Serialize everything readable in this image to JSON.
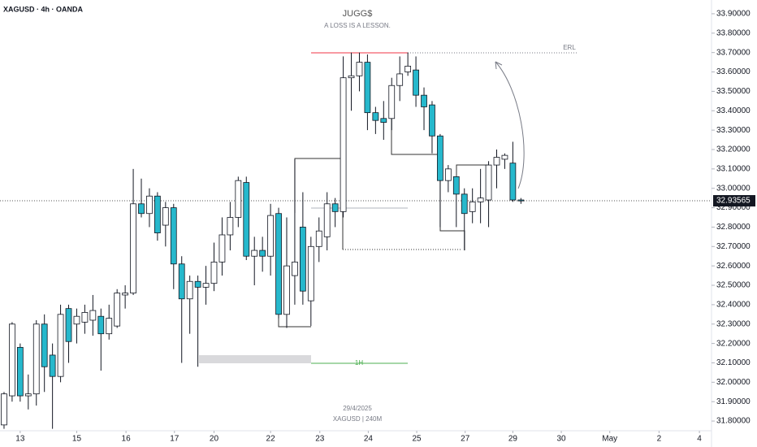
{
  "chart_data": {
    "type": "candlestick",
    "title": "JUGG$",
    "subtitle": "A LOSS IS A LESSON.",
    "symbol": "XAGUSD · 4h · OANDA",
    "watermark_date": "29/4/2025",
    "watermark_symbol": "XAGUSD | 240M",
    "annotations": {
      "erl": "ERL",
      "one_hour": "1H"
    },
    "up_color": "#ffffff",
    "down_color": "#26b8cc",
    "x": [
      0,
      1,
      2,
      3,
      4,
      5,
      6,
      7,
      8,
      9,
      10,
      11,
      12,
      13,
      14,
      15,
      16,
      17,
      18,
      19,
      20,
      21,
      22,
      23,
      24,
      25,
      26,
      27,
      28,
      29,
      30,
      31,
      32,
      33,
      34,
      35,
      36,
      37,
      38,
      39,
      40,
      41,
      42,
      43,
      44,
      45,
      46,
      47,
      48,
      49,
      50,
      51,
      52,
      53,
      54,
      55,
      56,
      57,
      58,
      59,
      60,
      61,
      62,
      63,
      64
    ],
    "open": [
      31.78,
      31.93,
      32.18,
      31.93,
      31.94,
      32.3,
      32.14,
      32.03,
      32.38,
      32.3,
      32.31,
      32.32,
      32.34,
      32.25,
      32.29,
      32.45,
      32.46,
      32.92,
      32.87,
      32.96,
      32.81,
      32.9,
      32.61,
      32.43,
      32.52,
      32.49,
      32.51,
      32.62,
      32.76,
      32.85,
      33.03,
      32.65,
      32.68,
      32.65,
      32.87,
      32.35,
      32.55,
      32.8,
      32.42,
      32.7,
      32.75,
      32.92,
      32.88,
      33.57,
      33.58,
      33.65,
      33.39,
      33.36,
      33.36,
      33.53,
      33.6,
      33.61,
      33.48,
      33.43,
      33.27,
      33.04,
      33.06,
      32.97,
      32.88,
      32.93,
      32.94,
      33.12,
      33.15,
      33.13,
      32.94
    ],
    "high": [
      31.95,
      32.31,
      32.2,
      32.04,
      32.32,
      32.35,
      32.2,
      32.4,
      32.4,
      32.38,
      32.4,
      32.45,
      32.38,
      32.4,
      32.48,
      32.5,
      33.1,
      33.05,
      33.0,
      32.98,
      32.93,
      32.92,
      32.65,
      32.55,
      32.55,
      32.6,
      32.72,
      32.85,
      32.93,
      33.06,
      33.06,
      32.75,
      32.75,
      32.92,
      32.9,
      32.85,
      33.15,
      32.98,
      32.75,
      32.85,
      32.98,
      32.95,
      33.68,
      33.7,
      33.7,
      33.69,
      33.42,
      33.45,
      33.57,
      33.68,
      33.7,
      33.68,
      33.52,
      33.45,
      33.28,
      33.12,
      33.06,
      33.0,
      33.0,
      33.1,
      33.14,
      33.2,
      33.18,
      33.24,
      32.95
    ],
    "low": [
      31.76,
      31.9,
      31.9,
      31.86,
      31.88,
      31.95,
      31.76,
      32.0,
      32.1,
      32.2,
      32.25,
      32.24,
      32.06,
      32.22,
      32.28,
      32.38,
      32.45,
      32.85,
      32.8,
      32.73,
      32.7,
      32.48,
      32.1,
      32.25,
      32.08,
      32.4,
      32.47,
      32.55,
      32.68,
      32.8,
      32.63,
      32.5,
      32.57,
      32.55,
      32.33,
      32.28,
      32.4,
      32.4,
      32.29,
      32.62,
      32.68,
      32.8,
      32.85,
      33.4,
      33.5,
      33.3,
      33.28,
      33.25,
      33.3,
      33.45,
      33.58,
      33.42,
      33.3,
      33.18,
      32.8,
      32.98,
      32.8,
      32.68,
      32.82,
      32.82,
      32.8,
      33.0,
      33.1,
      32.93,
      32.92
    ],
    "close": [
      31.94,
      32.3,
      31.93,
      31.94,
      32.3,
      32.08,
      32.03,
      32.35,
      32.21,
      32.34,
      32.36,
      32.37,
      32.25,
      32.33,
      32.46,
      32.46,
      32.92,
      32.87,
      32.96,
      32.77,
      32.9,
      32.61,
      32.43,
      32.52,
      32.49,
      32.51,
      32.62,
      32.76,
      32.85,
      33.04,
      32.65,
      32.68,
      32.65,
      32.86,
      32.35,
      32.6,
      32.62,
      32.47,
      32.7,
      32.78,
      32.92,
      32.88,
      33.57,
      33.58,
      33.65,
      33.39,
      33.35,
      33.34,
      33.53,
      33.59,
      33.63,
      33.48,
      33.42,
      33.27,
      33.04,
      33.1,
      32.97,
      32.87,
      32.93,
      32.95,
      33.12,
      33.16,
      33.17,
      32.94,
      32.935
    ],
    "last_price": 32.93565,
    "xlim": [
      -0.5,
      87.6
    ],
    "ylim": [
      31.75,
      33.95
    ],
    "xticks": [
      {
        "value": 2,
        "label": "13"
      },
      {
        "value": 9,
        "label": "15"
      },
      {
        "value": 15.1,
        "label": "16"
      },
      {
        "value": 21.1,
        "label": "17"
      },
      {
        "value": 26,
        "label": "20"
      },
      {
        "value": 33,
        "label": "22"
      },
      {
        "value": 39.1,
        "label": "23"
      },
      {
        "value": 45.1,
        "label": "24"
      },
      {
        "value": 51.1,
        "label": "25"
      },
      {
        "value": 57.1,
        "label": "27"
      },
      {
        "value": 63,
        "label": "29"
      },
      {
        "value": 69,
        "label": "30"
      },
      {
        "value": 75,
        "label": "May"
      },
      {
        "value": 81.1,
        "label": "2"
      },
      {
        "value": 86.1,
        "label": "4"
      }
    ],
    "yticks": [
      {
        "value": 31.8,
        "label": "31.80000"
      },
      {
        "value": 31.9,
        "label": "31.90000"
      },
      {
        "value": 32.0,
        "label": "32.00000"
      },
      {
        "value": 32.1,
        "label": "32.10000"
      },
      {
        "value": 32.2,
        "label": "32.20000"
      },
      {
        "value": 32.3,
        "label": "32.30000"
      },
      {
        "value": 32.4,
        "label": "32.40000"
      },
      {
        "value": 32.5,
        "label": "32.50000"
      },
      {
        "value": 32.6,
        "label": "32.60000"
      },
      {
        "value": 32.7,
        "label": "32.70000"
      },
      {
        "value": 32.8,
        "label": "32.80000"
      },
      {
        "value": 32.9,
        "label": "32.90000"
      },
      {
        "value": 33.0,
        "label": "33.00000"
      },
      {
        "value": 33.1,
        "label": "33.10000"
      },
      {
        "value": 33.2,
        "label": "33.20000"
      },
      {
        "value": 33.3,
        "label": "33.30000"
      },
      {
        "value": 33.4,
        "label": "33.40000"
      },
      {
        "value": 33.5,
        "label": "33.50000"
      },
      {
        "value": 33.6,
        "label": "33.60000"
      },
      {
        "value": 33.7,
        "label": "33.70000"
      },
      {
        "value": 33.8,
        "label": "33.80000"
      },
      {
        "value": 33.9,
        "label": "33.90000"
      }
    ]
  }
}
